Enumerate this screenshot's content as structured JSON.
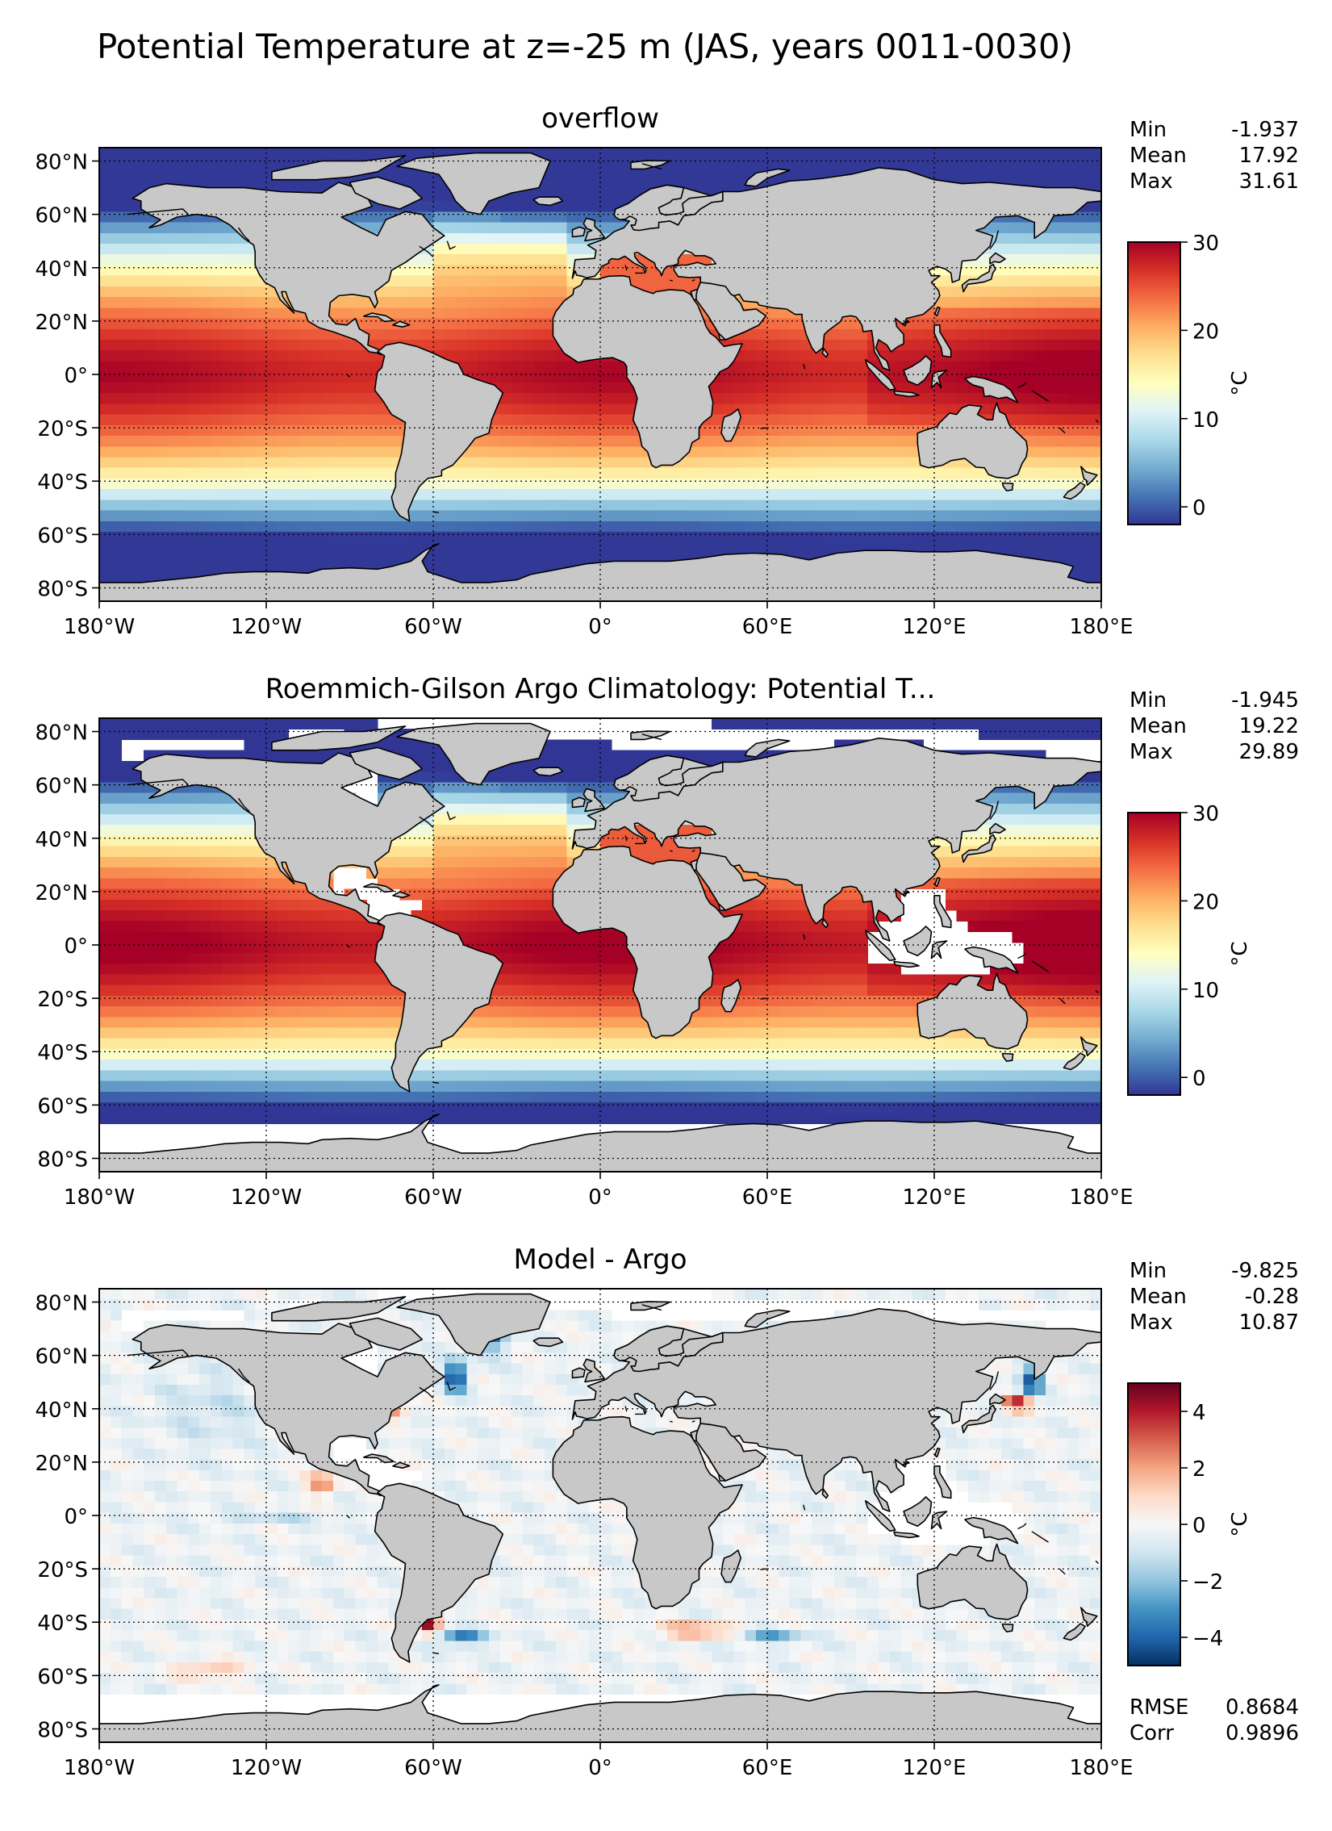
{
  "figure": {
    "title": "Potential Temperature at z=-25 m (JAS, years 0011-0030)"
  },
  "axes": {
    "lon_ticks": [
      {
        "lon": -180,
        "label": "180°W"
      },
      {
        "lon": -120,
        "label": "120°W"
      },
      {
        "lon": -60,
        "label": "60°W"
      },
      {
        "lon": 0,
        "label": "0°"
      },
      {
        "lon": 60,
        "label": "60°E"
      },
      {
        "lon": 120,
        "label": "120°E"
      },
      {
        "lon": 180,
        "label": "180°E"
      }
    ],
    "lat_ticks": [
      {
        "lat": 80,
        "label": "80°N"
      },
      {
        "lat": 60,
        "label": "60°N"
      },
      {
        "lat": 40,
        "label": "40°N"
      },
      {
        "lat": 20,
        "label": "20°N"
      },
      {
        "lat": 0,
        "label": "0°"
      },
      {
        "lat": -20,
        "label": "20°S"
      },
      {
        "lat": -40,
        "label": "40°S"
      },
      {
        "lat": -60,
        "label": "60°S"
      },
      {
        "lat": -80,
        "label": "80°S"
      }
    ],
    "lat_range": [
      -85,
      85
    ],
    "lon_range": [
      -180,
      180
    ],
    "grid": "dotted"
  },
  "panels": [
    {
      "id": "model",
      "title": "overflow",
      "stats": [
        {
          "label": "Min",
          "value": "-1.937"
        },
        {
          "label": "Mean",
          "value": "17.92"
        },
        {
          "label": "Max",
          "value": "31.61"
        }
      ],
      "colorbar": {
        "cmap": "RdYlBu_r",
        "vmin": -2,
        "vmax": 30,
        "ticks": [
          {
            "v": 0,
            "label": "0"
          },
          {
            "v": 10,
            "label": "10"
          },
          {
            "v": 20,
            "label": "20"
          },
          {
            "v": 30,
            "label": "30"
          }
        ],
        "unit": "°C",
        "colors": [
          "#313695",
          "#4575b4",
          "#74add1",
          "#abd9e9",
          "#e0f3f8",
          "#ffffbf",
          "#fee090",
          "#fdae61",
          "#f46d43",
          "#d73027",
          "#a50026"
        ]
      },
      "observed_south_limit": null
    },
    {
      "id": "obs",
      "title": "Roemmich-Gilson Argo Climatology: Potential T...",
      "stats": [
        {
          "label": "Min",
          "value": "-1.945"
        },
        {
          "label": "Mean",
          "value": "19.22"
        },
        {
          "label": "Max",
          "value": "29.89"
        }
      ],
      "colorbar": {
        "cmap": "RdYlBu_r",
        "vmin": -2,
        "vmax": 30,
        "ticks": [
          {
            "v": 0,
            "label": "0"
          },
          {
            "v": 10,
            "label": "10"
          },
          {
            "v": 20,
            "label": "20"
          },
          {
            "v": 30,
            "label": "30"
          }
        ],
        "unit": "°C",
        "colors": [
          "#313695",
          "#4575b4",
          "#74add1",
          "#abd9e9",
          "#e0f3f8",
          "#ffffbf",
          "#fee090",
          "#fdae61",
          "#f46d43",
          "#d73027",
          "#a50026"
        ]
      },
      "observed_south_limit": -65
    },
    {
      "id": "diff",
      "title": "Model - Argo",
      "stats": [
        {
          "label": "Min",
          "value": "-9.825"
        },
        {
          "label": "Mean",
          "value": "-0.28"
        },
        {
          "label": "Max",
          "value": "10.87"
        }
      ],
      "extra_stats": [
        {
          "label": "RMSE",
          "value": "0.8684"
        },
        {
          "label": "Corr",
          "value": "0.9896"
        }
      ],
      "colorbar": {
        "cmap": "RdBu_r",
        "vmin": -5,
        "vmax": 5,
        "ticks": [
          {
            "v": -4,
            "label": "−4"
          },
          {
            "v": -2,
            "label": "−2"
          },
          {
            "v": 0,
            "label": "0"
          },
          {
            "v": 2,
            "label": "2"
          },
          {
            "v": 4,
            "label": "4"
          }
        ],
        "unit": "°C",
        "colors": [
          "#053061",
          "#2166ac",
          "#4393c3",
          "#92c5de",
          "#d1e5f0",
          "#f7f7f7",
          "#fddbc7",
          "#f4a582",
          "#d6604d",
          "#b2182b",
          "#67001f"
        ]
      },
      "observed_south_limit": -65
    }
  ]
}
